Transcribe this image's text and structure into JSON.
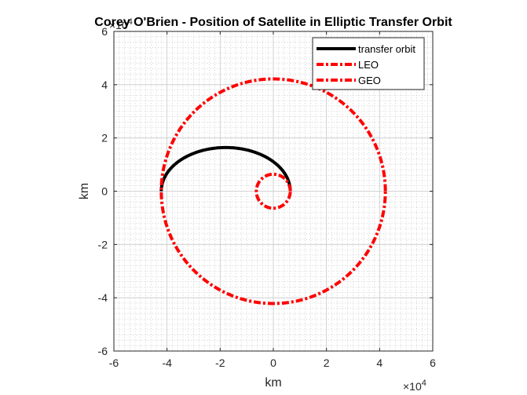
{
  "chart_data": {
    "type": "line",
    "title": "Corey O'Brien - Position of Satellite in Elliptic Transfer Orbit",
    "xlabel": "km",
    "ylabel": "km",
    "x_exponent_label": "×10",
    "x_exponent_power": "4",
    "y_exponent_label": "×10",
    "y_exponent_power": "4",
    "xlim": [
      -60000,
      60000
    ],
    "ylim": [
      -60000,
      60000
    ],
    "xticks": [
      -6,
      -4,
      -2,
      0,
      2,
      4,
      6
    ],
    "yticks": [
      -6,
      -4,
      -2,
      0,
      2,
      4,
      6
    ],
    "tick_scale": 10000,
    "grid": true,
    "minor_grid": true,
    "legend_position": "top-right",
    "series": [
      {
        "name": "transfer orbit",
        "kind": "half-ellipse",
        "periapsis_x": 6378,
        "apoapsis_x": -42164,
        "center_x": -17893,
        "semi_major": 24271,
        "semi_minor": 16400,
        "color": "#000000",
        "style": "solid"
      },
      {
        "name": "LEO",
        "kind": "circle",
        "radius": 6378,
        "color": "#ff0000",
        "style": "dashdot"
      },
      {
        "name": "GEO",
        "kind": "circle",
        "radius": 42164,
        "color": "#ff0000",
        "style": "dashdot"
      }
    ]
  }
}
